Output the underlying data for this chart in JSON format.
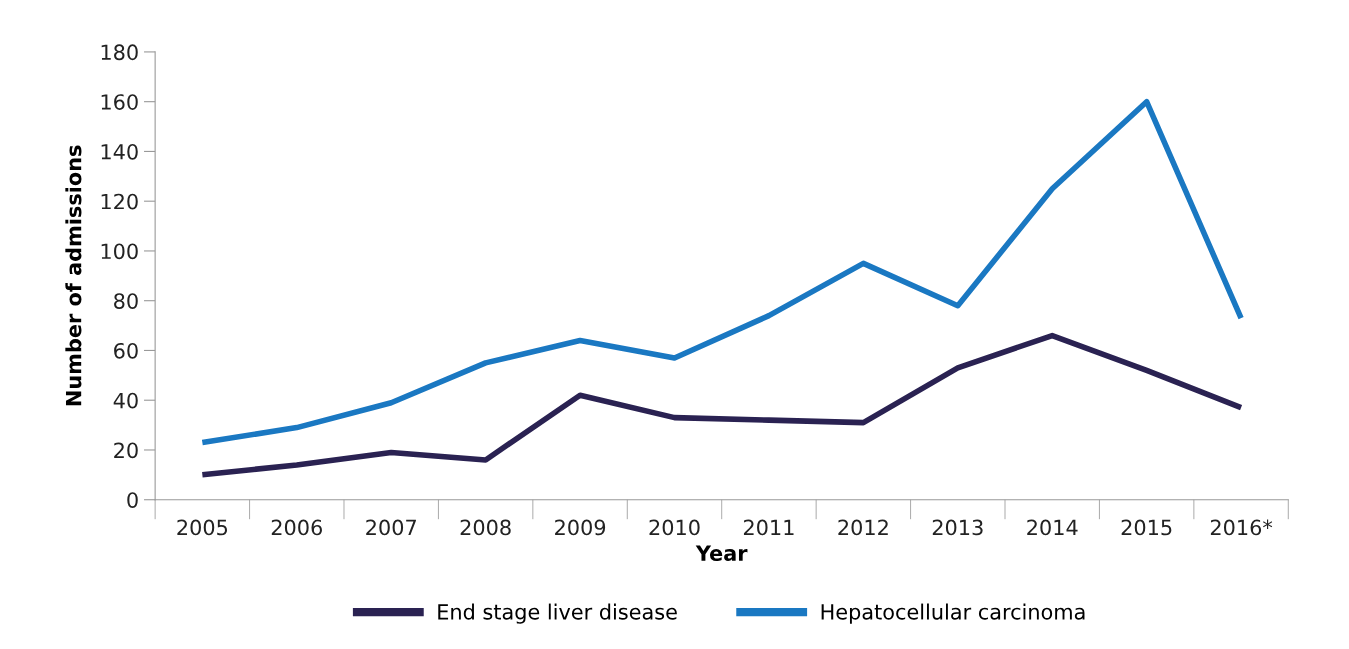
{
  "chart_data": {
    "type": "line",
    "xlabel": "Year",
    "ylabel": "Number of admissions",
    "categories": [
      "2005",
      "2006",
      "2007",
      "2008",
      "2009",
      "2010",
      "2011",
      "2012",
      "2013",
      "2014",
      "2015",
      "2016*"
    ],
    "series": [
      {
        "name": "End stage liver disease",
        "color": "#2a2252",
        "values": [
          10,
          14,
          19,
          16,
          42,
          33,
          32,
          31,
          53,
          66,
          52,
          37
        ]
      },
      {
        "name": "Hepatocellular carcinoma",
        "color": "#1a78c2",
        "values": [
          23,
          29,
          39,
          55,
          64,
          57,
          74,
          95,
          78,
          125,
          160,
          73
        ]
      }
    ],
    "ylim": [
      0,
      180
    ],
    "yticks": [
      0,
      20,
      40,
      60,
      80,
      100,
      120,
      140,
      160,
      180
    ],
    "grid": false,
    "legend": "bottom",
    "marker": "none",
    "line_style": "solid"
  }
}
